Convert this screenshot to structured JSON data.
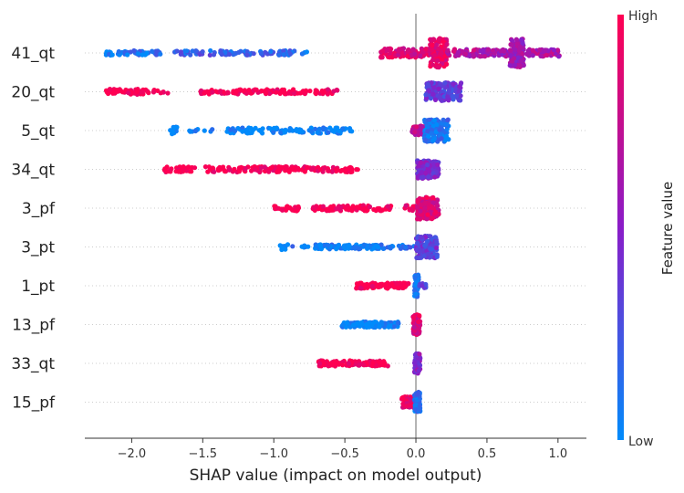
{
  "chart_data": {
    "type": "scatter",
    "subtype": "shap-beeswarm",
    "xlabel": "SHAP value (impact on model output)",
    "xlim": [
      -2.33,
      1.2
    ],
    "xticks": [
      -2.0,
      -1.5,
      -1.0,
      -0.5,
      0.0,
      0.5,
      1.0
    ],
    "xtick_labels": [
      "−2.0",
      "−1.5",
      "−1.0",
      "−0.5",
      "0.0",
      "0.5",
      "1.0"
    ],
    "colorbar": {
      "label": "Feature value",
      "high": "High",
      "low": "Low",
      "high_color": "#ff0052",
      "low_color": "#008bfb"
    },
    "features": [
      {
        "name": "41_qt",
        "clusters": [
          {
            "from": -2.18,
            "to": -1.78,
            "value": 0.1,
            "width": 2.5,
            "n": 50
          },
          {
            "from": -1.72,
            "to": -0.85,
            "value": 0.2,
            "width": 2.5,
            "n": 90
          },
          {
            "from": -0.8,
            "to": -0.75,
            "value": 0.15,
            "width": 1.5,
            "n": 4
          },
          {
            "from": -0.25,
            "to": 0.1,
            "value": 0.85,
            "width": 5,
            "n": 120
          },
          {
            "from": 0.1,
            "to": 0.22,
            "value": 0.9,
            "width": 16,
            "n": 130
          },
          {
            "from": 0.22,
            "to": 0.45,
            "value": 0.7,
            "width": 4,
            "n": 60
          },
          {
            "from": 0.45,
            "to": 0.66,
            "value": 0.6,
            "width": 4,
            "n": 60
          },
          {
            "from": 0.66,
            "to": 0.76,
            "value": 0.6,
            "width": 16,
            "n": 120
          },
          {
            "from": 0.76,
            "to": 1.02,
            "value": 0.65,
            "width": 4,
            "n": 50
          }
        ]
      },
      {
        "name": "20_qt",
        "clusters": [
          {
            "from": -2.18,
            "to": -1.88,
            "value": 1.0,
            "width": 3,
            "n": 60
          },
          {
            "from": -1.85,
            "to": -1.72,
            "value": 1.0,
            "width": 2,
            "n": 8
          },
          {
            "from": -1.55,
            "to": -0.55,
            "value": 1.0,
            "width": 2.5,
            "n": 130
          },
          {
            "from": 0.07,
            "to": 0.32,
            "value": 0.35,
            "width": 10,
            "n": 160
          }
        ]
      },
      {
        "name": "5_qt",
        "clusters": [
          {
            "from": -1.73,
            "to": -1.68,
            "value": 0.0,
            "width": 4,
            "n": 15
          },
          {
            "from": -1.65,
            "to": -1.35,
            "value": 0.0,
            "width": 1.5,
            "n": 10
          },
          {
            "from": -1.35,
            "to": -0.45,
            "value": 0.0,
            "width": 3,
            "n": 110
          },
          {
            "from": -0.03,
            "to": 0.1,
            "value": 0.75,
            "width": 5,
            "n": 60
          },
          {
            "from": 0.06,
            "to": 0.23,
            "value": 0.1,
            "width": 12,
            "n": 150
          }
        ]
      },
      {
        "name": "34_qt",
        "clusters": [
          {
            "from": -1.78,
            "to": -1.55,
            "value": 1.0,
            "width": 3,
            "n": 35
          },
          {
            "from": -1.48,
            "to": -0.45,
            "value": 1.0,
            "width": 3,
            "n": 160
          },
          {
            "from": -0.42,
            "to": -0.4,
            "value": 1.0,
            "width": 1,
            "n": 2
          },
          {
            "from": 0.01,
            "to": 0.16,
            "value": 0.45,
            "width": 10,
            "n": 150
          }
        ]
      },
      {
        "name": "3_pf",
        "clusters": [
          {
            "from": -1.0,
            "to": -0.82,
            "value": 1.0,
            "width": 3,
            "n": 25
          },
          {
            "from": -0.75,
            "to": -0.17,
            "value": 1.0,
            "width": 3,
            "n": 80
          },
          {
            "from": -0.08,
            "to": 0.02,
            "value": 0.95,
            "width": 3,
            "n": 12
          },
          {
            "from": 0.01,
            "to": 0.16,
            "value": 0.85,
            "width": 12,
            "n": 160
          }
        ]
      },
      {
        "name": "3_pt",
        "clusters": [
          {
            "from": -0.96,
            "to": -0.9,
            "value": 0.0,
            "width": 3,
            "n": 12
          },
          {
            "from": -0.88,
            "to": -0.73,
            "value": 0.05,
            "width": 1.5,
            "n": 6
          },
          {
            "from": -0.72,
            "to": -0.15,
            "value": 0.05,
            "width": 2.5,
            "n": 100
          },
          {
            "from": -0.13,
            "to": -0.01,
            "value": 0.1,
            "width": 2,
            "n": 15
          },
          {
            "from": 0.0,
            "to": 0.15,
            "value": 0.35,
            "width": 12,
            "n": 150
          }
        ]
      },
      {
        "name": "1_pt",
        "clusters": [
          {
            "from": -0.42,
            "to": -0.05,
            "value": 1.0,
            "width": 3,
            "n": 110
          },
          {
            "from": -0.01,
            "to": 0.02,
            "value": 0.1,
            "width": 12,
            "n": 60
          },
          {
            "from": 0.02,
            "to": 0.07,
            "value": 0.35,
            "width": 3,
            "n": 12
          }
        ]
      },
      {
        "name": "13_pf",
        "clusters": [
          {
            "from": -0.52,
            "to": -0.12,
            "value": 0.0,
            "width": 3,
            "n": 110
          },
          {
            "from": -0.02,
            "to": 0.03,
            "value": 0.85,
            "width": 11,
            "n": 80
          }
        ]
      },
      {
        "name": "33_qt",
        "clusters": [
          {
            "from": -0.69,
            "to": -0.18,
            "value": 1.0,
            "width": 3,
            "n": 130
          },
          {
            "from": -0.01,
            "to": 0.03,
            "value": 0.5,
            "width": 11,
            "n": 80
          }
        ]
      },
      {
        "name": "15_pf",
        "clusters": [
          {
            "from": -0.1,
            "to": -0.01,
            "value": 0.9,
            "width": 6,
            "n": 60
          },
          {
            "from": -0.01,
            "to": 0.03,
            "value": 0.1,
            "width": 11,
            "n": 80
          }
        ]
      }
    ]
  }
}
